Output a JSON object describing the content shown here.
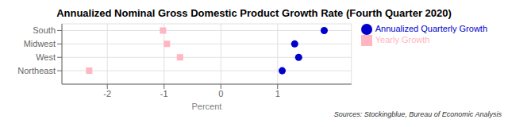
{
  "chart_data": {
    "type": "scatter",
    "title": "Annualized Nominal Gross Domestic Product Growth Rate (Fourth Quarter 2020)",
    "xlabel": "Percent",
    "annotation": "Sources: Stockingblue, Bureau of Economic Analysis",
    "orientation": "horizontal",
    "categories": [
      "South",
      "Midwest",
      "West",
      "Northeast"
    ],
    "series": [
      {
        "name": "Annualized Quarterly Growth",
        "color": "#0000CC",
        "marker": "circle",
        "values": [
          1.82,
          1.3,
          1.37,
          1.08
        ]
      },
      {
        "name": "Yearly Growth",
        "color": "#FFB6C1",
        "marker": "square",
        "values": [
          -1.02,
          -0.95,
          -0.72,
          -2.32
        ]
      }
    ],
    "xlim": [
      -2.8,
      2.3
    ],
    "xticks": [
      -2,
      -1,
      0,
      1
    ],
    "grid": true,
    "legend": "upper right"
  }
}
